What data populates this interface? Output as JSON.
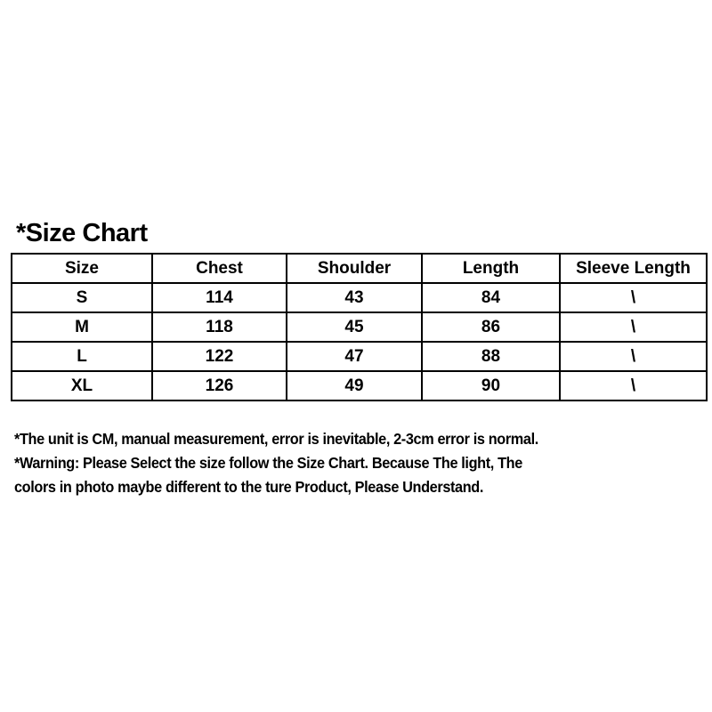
{
  "title": "*Size Chart",
  "table": {
    "headers": [
      "Size",
      "Chest",
      "Shoulder",
      "Length",
      "Sleeve Length"
    ],
    "rows": [
      [
        "S",
        "114",
        "43",
        "84",
        "\\"
      ],
      [
        "M",
        "118",
        "45",
        "86",
        "\\"
      ],
      [
        "L",
        "122",
        "47",
        "88",
        "\\"
      ],
      [
        "XL",
        "126",
        "49",
        "90",
        "\\"
      ]
    ]
  },
  "notes": [
    "*The unit is CM, manual measurement, error is inevitable, 2-3cm error is normal.",
    "*Warning:  Please Select the size follow the Size Chart. Because The light, The",
    "colors in photo maybe different to the ture Product, Please Understand."
  ]
}
